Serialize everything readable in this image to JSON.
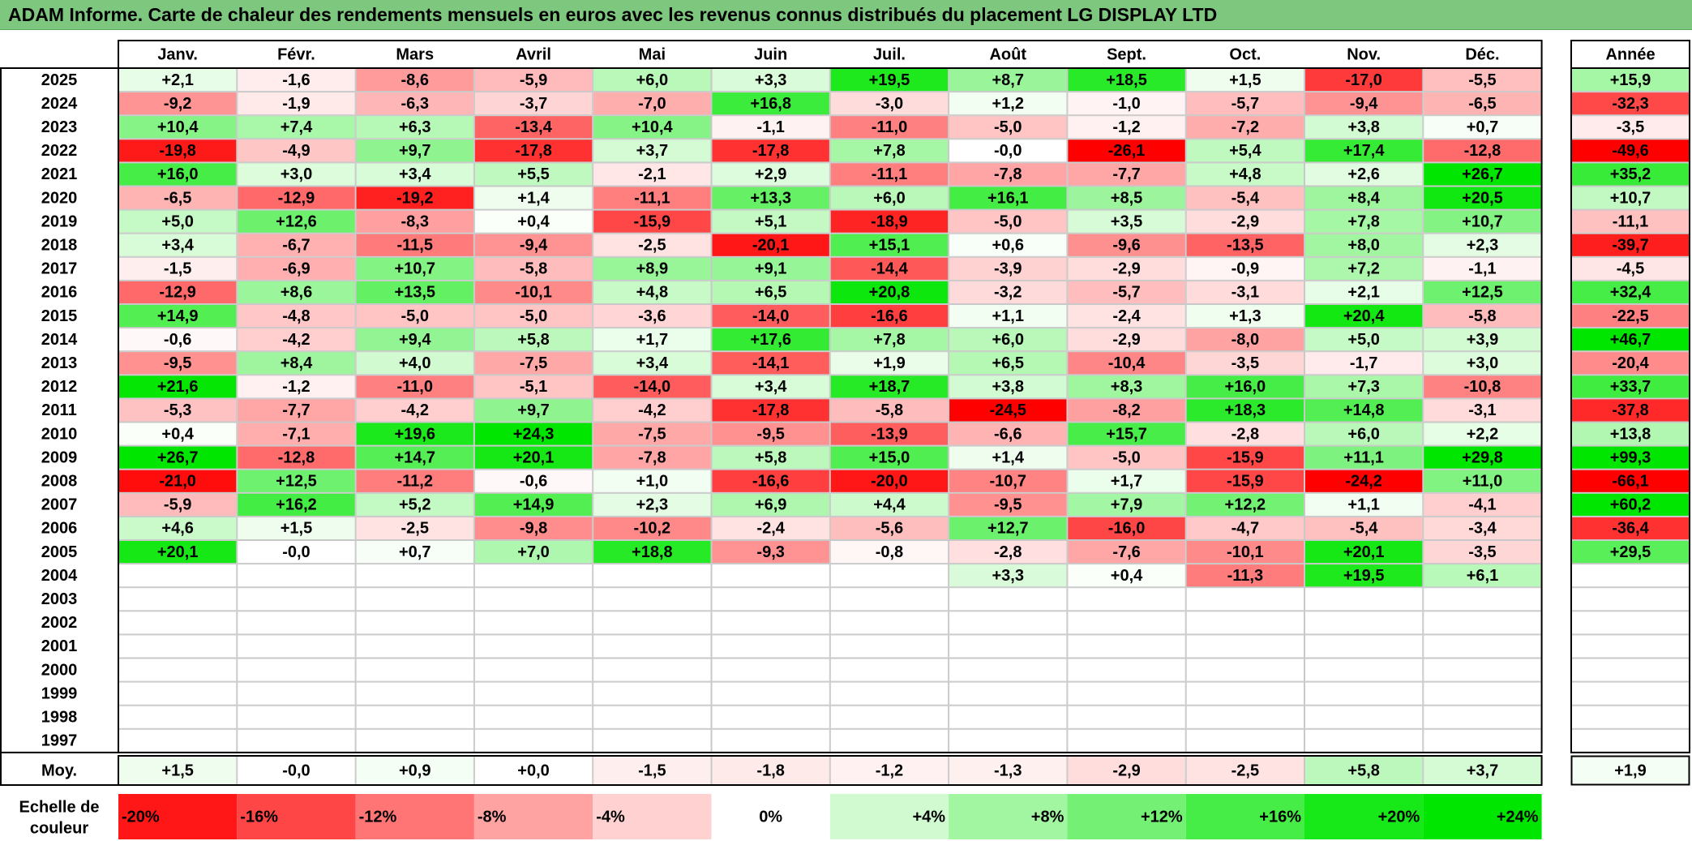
{
  "title": "ADAM Informe. Carte de chaleur des rendements mensuels en euros avec les revenus connus distribués du placement LG DISPLAY LTD",
  "chart_data": {
    "type": "heatmap",
    "title": "ADAM Informe. Carte de chaleur des rendements mensuels en euros avec les revenus connus distribués du placement LG DISPLAY LTD",
    "months": [
      "Janv.",
      "Févr.",
      "Mars",
      "Avril",
      "Mai",
      "Juin",
      "Juil.",
      "Août",
      "Sept.",
      "Oct.",
      "Nov.",
      "Déc."
    ],
    "year_header": "Année",
    "rows": [
      {
        "year": "2025",
        "values": [
          "+2,1",
          "-1,6",
          "-8,6",
          "-5,9",
          "+6,0",
          "+3,3",
          "+19,5",
          "+8,7",
          "+18,5",
          "+1,5",
          "-17,0",
          "-5,5"
        ],
        "annual": "+15,9"
      },
      {
        "year": "2024",
        "values": [
          "-9,2",
          "-1,9",
          "-6,3",
          "-3,7",
          "-7,0",
          "+16,8",
          "-3,0",
          "+1,2",
          "-1,0",
          "-5,7",
          "-9,4",
          "-6,5"
        ],
        "annual": "-32,3"
      },
      {
        "year": "2023",
        "values": [
          "+10,4",
          "+7,4",
          "+6,3",
          "-13,4",
          "+10,4",
          "-1,1",
          "-11,0",
          "-5,0",
          "-1,2",
          "-7,2",
          "+3,8",
          "+0,7"
        ],
        "annual": "-3,5"
      },
      {
        "year": "2022",
        "values": [
          "-19,8",
          "-4,9",
          "+9,7",
          "-17,8",
          "+3,7",
          "-17,8",
          "+7,8",
          "-0,0",
          "-26,1",
          "+5,4",
          "+17,4",
          "-12,8"
        ],
        "annual": "-49,6"
      },
      {
        "year": "2021",
        "values": [
          "+16,0",
          "+3,0",
          "+3,4",
          "+5,5",
          "-2,1",
          "+2,9",
          "-11,1",
          "-7,8",
          "-7,7",
          "+4,8",
          "+2,6",
          "+26,7"
        ],
        "annual": "+35,2"
      },
      {
        "year": "2020",
        "values": [
          "-6,5",
          "-12,9",
          "-19,2",
          "+1,4",
          "-11,1",
          "+13,3",
          "+6,0",
          "+16,1",
          "+8,5",
          "-5,4",
          "+8,4",
          "+20,5"
        ],
        "annual": "+10,7"
      },
      {
        "year": "2019",
        "values": [
          "+5,0",
          "+12,6",
          "-8,3",
          "+0,4",
          "-15,9",
          "+5,1",
          "-18,9",
          "-5,0",
          "+3,5",
          "-2,9",
          "+7,8",
          "+10,7"
        ],
        "annual": "-11,1"
      },
      {
        "year": "2018",
        "values": [
          "+3,4",
          "-6,7",
          "-11,5",
          "-9,4",
          "-2,5",
          "-20,1",
          "+15,1",
          "+0,6",
          "-9,6",
          "-13,5",
          "+8,0",
          "+2,3"
        ],
        "annual": "-39,7"
      },
      {
        "year": "2017",
        "values": [
          "-1,5",
          "-6,9",
          "+10,7",
          "-5,8",
          "+8,9",
          "+9,1",
          "-14,4",
          "-3,9",
          "-2,9",
          "-0,9",
          "+7,2",
          "-1,1"
        ],
        "annual": "-4,5"
      },
      {
        "year": "2016",
        "values": [
          "-12,9",
          "+8,6",
          "+13,5",
          "-10,1",
          "+4,8",
          "+6,5",
          "+20,8",
          "-3,2",
          "-5,7",
          "-3,1",
          "+2,1",
          "+12,5"
        ],
        "annual": "+32,4"
      },
      {
        "year": "2015",
        "values": [
          "+14,9",
          "-4,8",
          "-5,0",
          "-5,0",
          "-3,6",
          "-14,0",
          "-16,6",
          "+1,1",
          "-2,4",
          "+1,3",
          "+20,4",
          "-5,8"
        ],
        "annual": "-22,5"
      },
      {
        "year": "2014",
        "values": [
          "-0,6",
          "-4,2",
          "+9,4",
          "+5,8",
          "+1,7",
          "+17,6",
          "+7,8",
          "+6,0",
          "-2,9",
          "-8,0",
          "+5,0",
          "+3,9"
        ],
        "annual": "+46,7"
      },
      {
        "year": "2013",
        "values": [
          "-9,5",
          "+8,4",
          "+4,0",
          "-7,5",
          "+3,4",
          "-14,1",
          "+1,9",
          "+6,5",
          "-10,4",
          "-3,5",
          "-1,7",
          "+3,0"
        ],
        "annual": "-20,4"
      },
      {
        "year": "2012",
        "values": [
          "+21,6",
          "-1,2",
          "-11,0",
          "-5,1",
          "-14,0",
          "+3,4",
          "+18,7",
          "+3,8",
          "+8,3",
          "+16,0",
          "+7,3",
          "-10,8"
        ],
        "annual": "+33,7"
      },
      {
        "year": "2011",
        "values": [
          "-5,3",
          "-7,7",
          "-4,2",
          "+9,7",
          "-4,2",
          "-17,8",
          "-5,8",
          "-24,5",
          "-8,2",
          "+18,3",
          "+14,8",
          "-3,1"
        ],
        "annual": "-37,8"
      },
      {
        "year": "2010",
        "values": [
          "+0,4",
          "-7,1",
          "+19,6",
          "+24,3",
          "-7,5",
          "-9,5",
          "-13,9",
          "-6,6",
          "+15,7",
          "-2,8",
          "+6,0",
          "+2,2"
        ],
        "annual": "+13,8"
      },
      {
        "year": "2009",
        "values": [
          "+26,7",
          "-12,8",
          "+14,7",
          "+20,1",
          "-7,8",
          "+5,8",
          "+15,0",
          "+1,4",
          "-5,0",
          "-15,9",
          "+11,1",
          "+29,8"
        ],
        "annual": "+99,3"
      },
      {
        "year": "2008",
        "values": [
          "-21,0",
          "+12,5",
          "-11,2",
          "-0,6",
          "+1,0",
          "-16,6",
          "-20,0",
          "-10,7",
          "+1,7",
          "-15,9",
          "-24,2",
          "+11,0"
        ],
        "annual": "-66,1"
      },
      {
        "year": "2007",
        "values": [
          "-5,9",
          "+16,2",
          "+5,2",
          "+14,9",
          "+2,3",
          "+6,9",
          "+4,4",
          "-9,5",
          "+7,9",
          "+12,2",
          "+1,1",
          "-4,1"
        ],
        "annual": "+60,2"
      },
      {
        "year": "2006",
        "values": [
          "+4,6",
          "+1,5",
          "-2,5",
          "-9,8",
          "-10,2",
          "-2,4",
          "-5,6",
          "+12,7",
          "-16,0",
          "-4,7",
          "-5,4",
          "-3,4"
        ],
        "annual": "-36,4"
      },
      {
        "year": "2005",
        "values": [
          "+20,1",
          "-0,0",
          "+0,7",
          "+7,0",
          "+18,8",
          "-9,3",
          "-0,8",
          "-2,8",
          "-7,6",
          "-10,1",
          "+20,1",
          "-3,5"
        ],
        "annual": "+29,5"
      },
      {
        "year": "2004",
        "values": [
          "",
          "",
          "",
          "",
          "",
          "",
          "",
          "+3,3",
          "+0,4",
          "-11,3",
          "+19,5",
          "+6,1"
        ],
        "annual": ""
      },
      {
        "year": "2003",
        "values": [
          "",
          "",
          "",
          "",
          "",
          "",
          "",
          "",
          "",
          "",
          "",
          ""
        ],
        "annual": ""
      },
      {
        "year": "2002",
        "values": [
          "",
          "",
          "",
          "",
          "",
          "",
          "",
          "",
          "",
          "",
          "",
          ""
        ],
        "annual": ""
      },
      {
        "year": "2001",
        "values": [
          "",
          "",
          "",
          "",
          "",
          "",
          "",
          "",
          "",
          "",
          "",
          ""
        ],
        "annual": ""
      },
      {
        "year": "2000",
        "values": [
          "",
          "",
          "",
          "",
          "",
          "",
          "",
          "",
          "",
          "",
          "",
          ""
        ],
        "annual": ""
      },
      {
        "year": "1999",
        "values": [
          "",
          "",
          "",
          "",
          "",
          "",
          "",
          "",
          "",
          "",
          "",
          ""
        ],
        "annual": ""
      },
      {
        "year": "1998",
        "values": [
          "",
          "",
          "",
          "",
          "",
          "",
          "",
          "",
          "",
          "",
          "",
          ""
        ],
        "annual": ""
      },
      {
        "year": "1997",
        "values": [
          "",
          "",
          "",
          "",
          "",
          "",
          "",
          "",
          "",
          "",
          "",
          ""
        ],
        "annual": ""
      }
    ],
    "average": {
      "label": "Moy.",
      "values": [
        "+1,5",
        "-0,0",
        "+0,9",
        "+0,0",
        "-1,5",
        "-1,8",
        "-1,2",
        "-1,3",
        "-2,9",
        "-2,5",
        "+5,8",
        "+3,7"
      ],
      "annual": "+1,9"
    },
    "legend": {
      "label_line1": "Echelle de",
      "label_line2": "couleur",
      "steps": [
        "-20%",
        "-16%",
        "-12%",
        "-8%",
        "-4%",
        "0%",
        "+4%",
        "+8%",
        "+12%",
        "+16%",
        "+20%",
        "+24%"
      ],
      "step_values": [
        -20,
        -16,
        -12,
        -8,
        -4,
        0,
        4,
        8,
        12,
        16,
        20,
        24
      ]
    },
    "colors": {
      "negative_max": "#ff0000",
      "zero": "#ffffff",
      "positive_max": "#00e600"
    }
  }
}
